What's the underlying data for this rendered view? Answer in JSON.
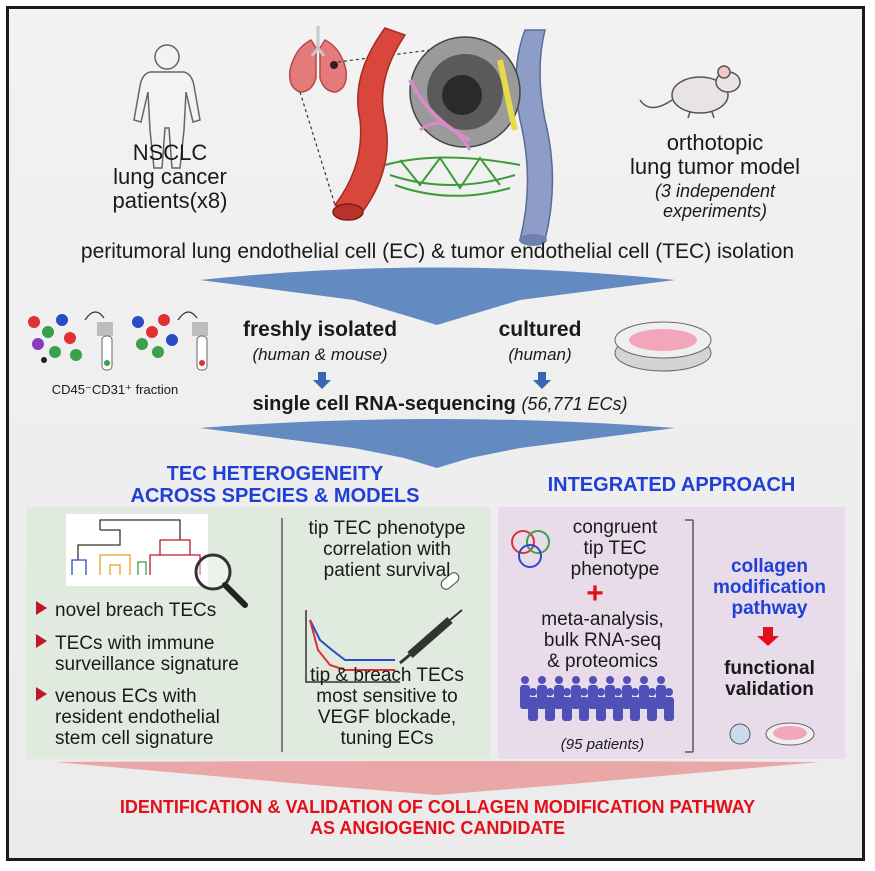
{
  "top": {
    "human_label_1": "NSCLC",
    "human_label_2": "lung cancer",
    "human_label_3": "patients(x8)",
    "mouse_label_1": "orthotopic",
    "mouse_label_2": "lung tumor model",
    "mouse_note_1": "(3 independent",
    "mouse_note_2": "experiments)",
    "isolation_text": "peritumoral lung endothelial cell (EC) & tumor endothelial cell (TEC) isolation"
  },
  "middle": {
    "fraction_label": "CD45⁻CD31⁺ fraction",
    "fresh_title": "freshly isolated",
    "fresh_note": "(human & mouse)",
    "cultured_title": "cultured",
    "cultured_note": "(human)",
    "scrna_label": "single cell RNA-sequencing",
    "scrna_note": "(56,771 ECs)"
  },
  "left_panel": {
    "heading_1": "TEC HETEROGENEITY",
    "heading_2": "ACROSS SPECIES & MODELS",
    "bullets": [
      [
        "novel breach TECs"
      ],
      [
        "TECs with immune",
        "surveillance signature"
      ],
      [
        "venous ECs with",
        "resident endothelial",
        "stem cell signature"
      ]
    ],
    "survival_lines": [
      "tip TEC phenotype",
      "correlation with",
      "patient survival"
    ],
    "vegf_lines": [
      "tip & breach TECs",
      "most sensitive to",
      "VEGF blockade,",
      "tuning ECs"
    ]
  },
  "right_panel": {
    "heading": "INTEGRATED APPROACH",
    "congruent_lines": [
      "congruent",
      "tip TEC",
      "phenotype"
    ],
    "plus": "+",
    "meta_lines": [
      "meta-analysis,",
      "bulk RNA-seq",
      "& proteomics"
    ],
    "patients_note": "(95 patients)",
    "pathway_lines": [
      "collagen",
      "modification",
      "pathway"
    ],
    "validation_lines": [
      "functional",
      "validation"
    ]
  },
  "bottom": {
    "line_1": "IDENTIFICATION & VALIDATION OF COLLAGEN MODIFICATION PATHWAY",
    "line_2": "AS ANGIOGENIC CANDIDATE"
  },
  "colors": {
    "blue_heading": "#1f3fd6",
    "red_heading": "#e3101a",
    "left_panel_bg": "#e1eadf",
    "right_panel_bg": "#e8dceb",
    "arrow_blue": "#4a78b8"
  }
}
